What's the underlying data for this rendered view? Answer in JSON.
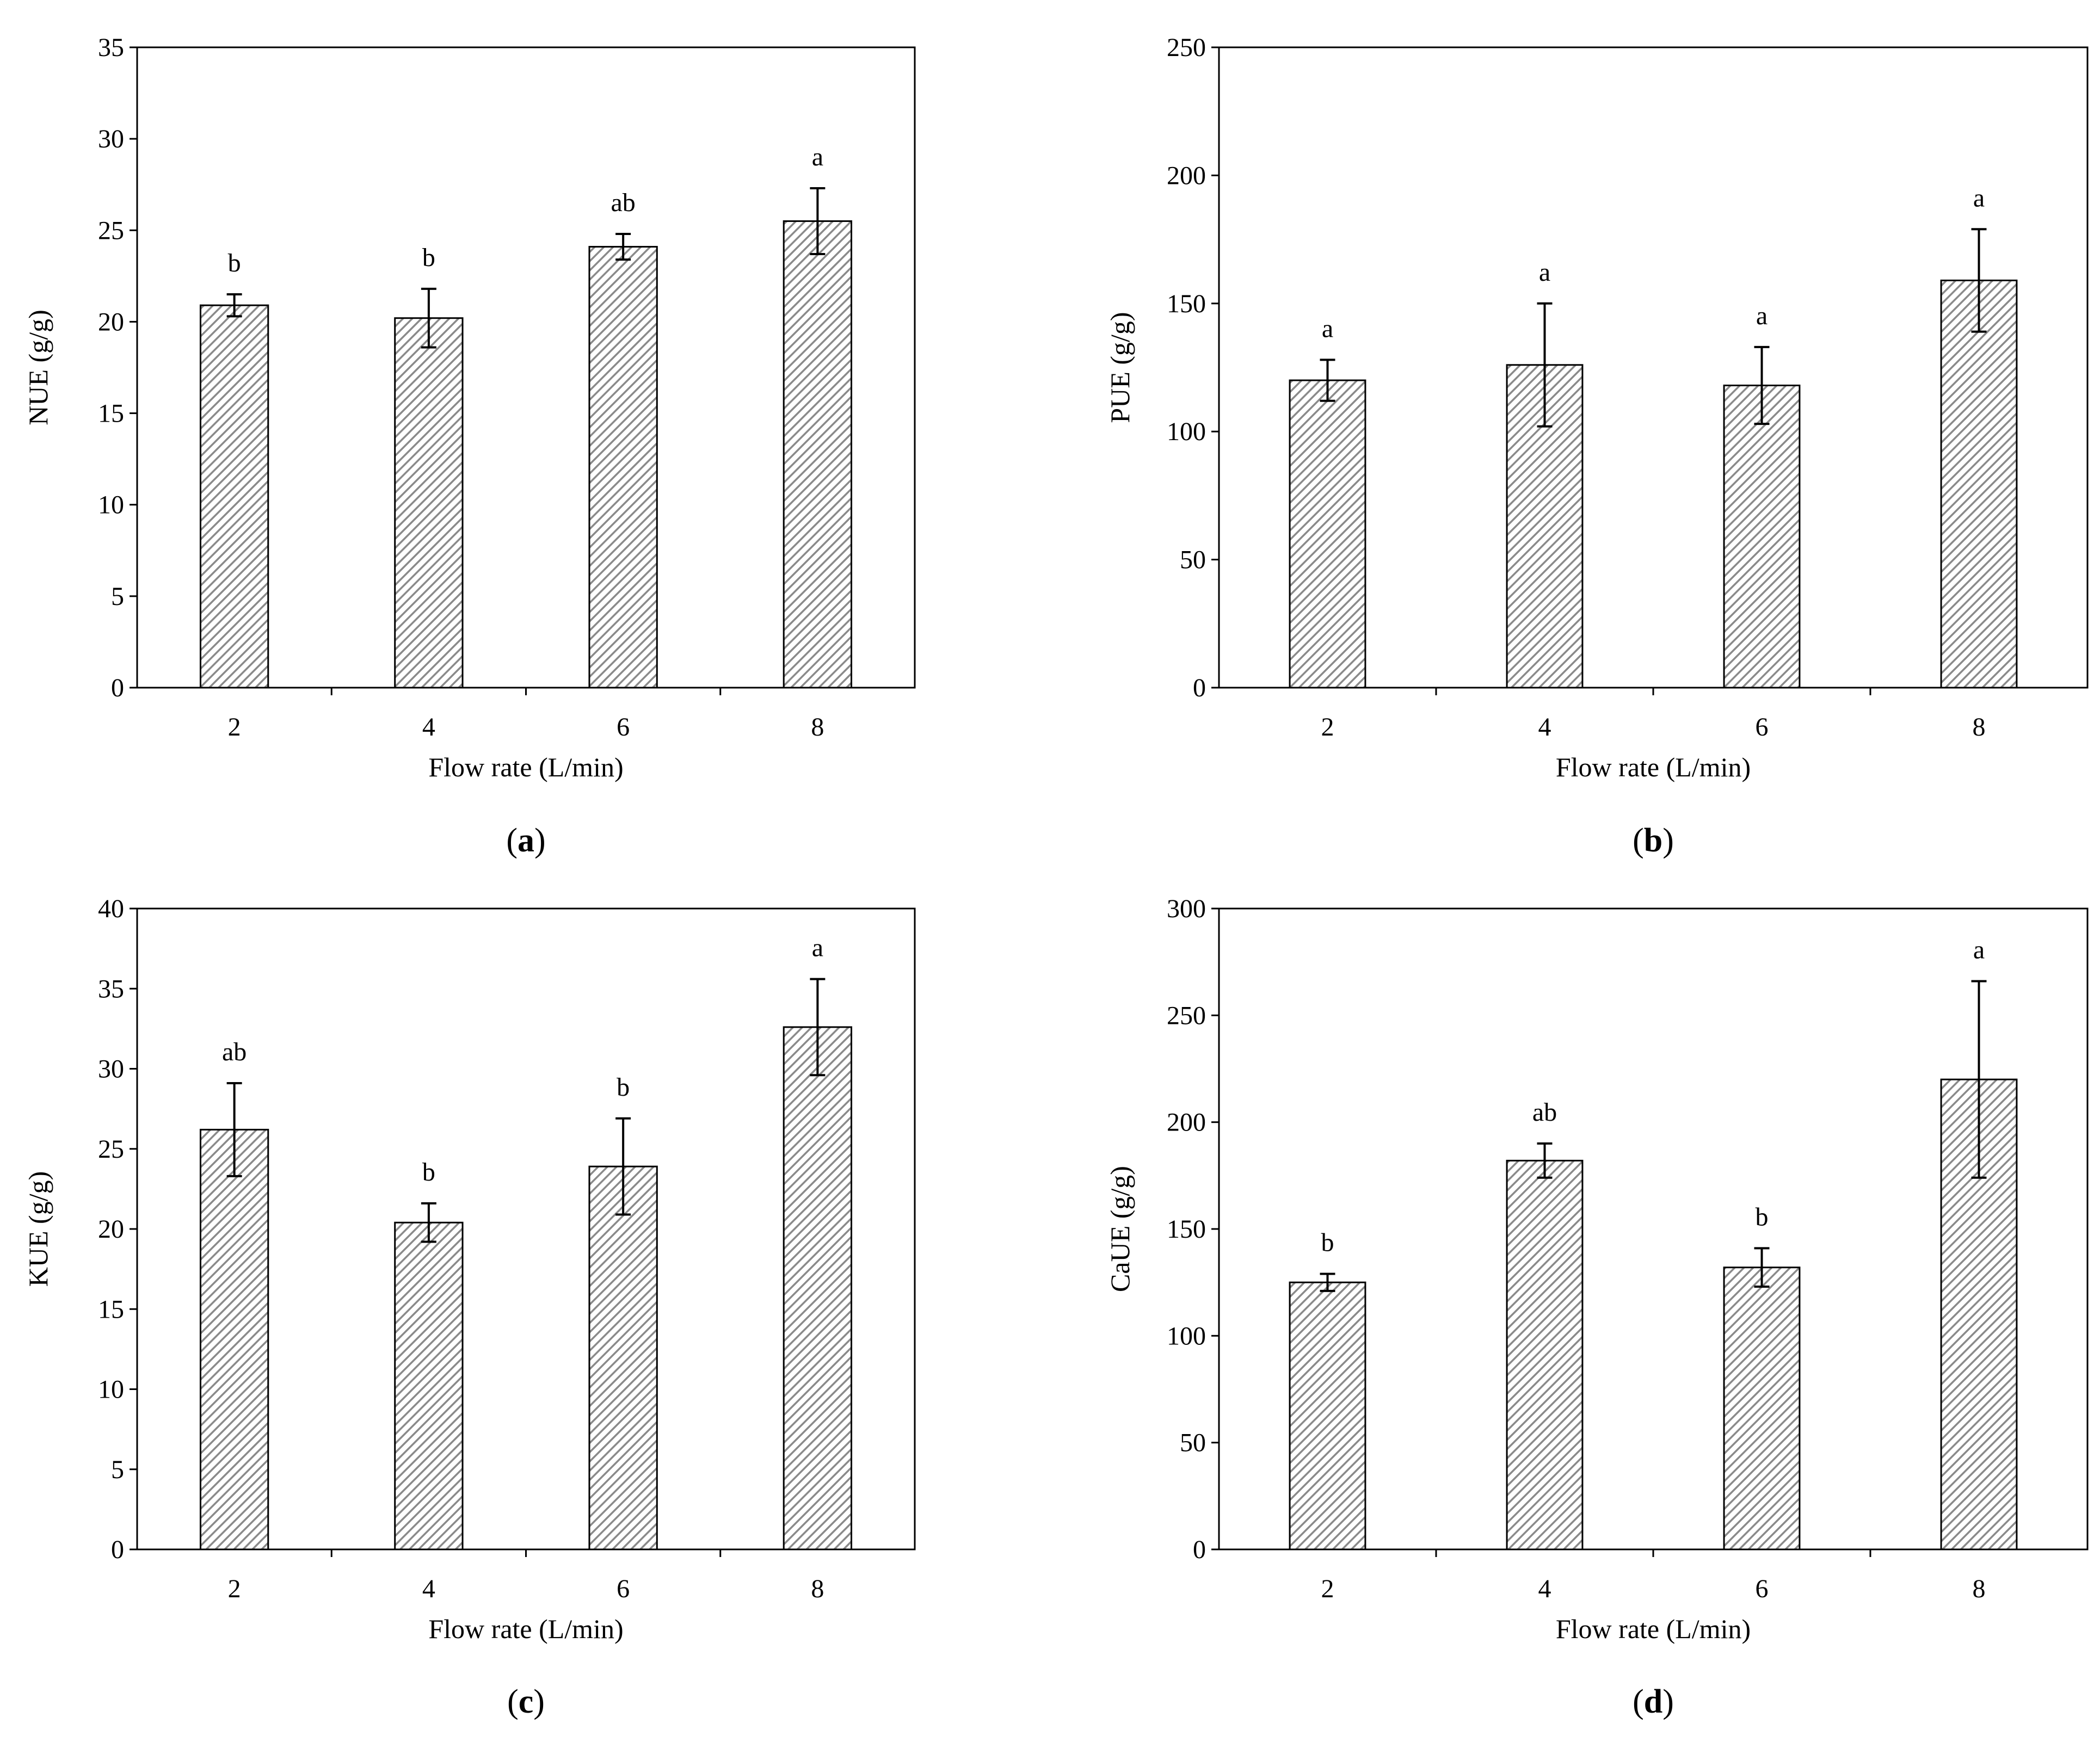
{
  "chart_data": [
    {
      "panel": "a",
      "type": "bar",
      "xlabel": "Flow rate (L/min)",
      "ylabel": "NUE (g/g)",
      "ylim": [
        0,
        35
      ],
      "yticks": [
        0,
        5,
        10,
        15,
        20,
        25,
        30,
        35
      ],
      "categories": [
        "2",
        "4",
        "6",
        "8"
      ],
      "values": [
        20.9,
        20.2,
        24.1,
        25.5
      ],
      "errors": [
        0.6,
        1.6,
        0.7,
        1.8
      ],
      "significance": [
        "b",
        "b",
        "ab",
        "a"
      ],
      "label_open": "(",
      "label_letter": "a",
      "label_close": ")"
    },
    {
      "panel": "b",
      "type": "bar",
      "xlabel": "Flow rate (L/min)",
      "ylabel": "PUE (g/g)",
      "ylim": [
        0,
        250
      ],
      "yticks": [
        0,
        50,
        100,
        150,
        200,
        250
      ],
      "categories": [
        "2",
        "4",
        "6",
        "8"
      ],
      "values": [
        120,
        126,
        118,
        159
      ],
      "errors": [
        8,
        24,
        15,
        20
      ],
      "significance": [
        "a",
        "a",
        "a",
        "a"
      ],
      "label_open": "(",
      "label_letter": "b",
      "label_close": ")"
    },
    {
      "panel": "c",
      "type": "bar",
      "xlabel": "Flow rate (L/min)",
      "ylabel": "KUE (g/g)",
      "ylim": [
        0,
        40
      ],
      "yticks": [
        0,
        5,
        10,
        15,
        20,
        25,
        30,
        35,
        40
      ],
      "categories": [
        "2",
        "4",
        "6",
        "8"
      ],
      "values": [
        26.2,
        20.4,
        23.9,
        32.6
      ],
      "errors": [
        2.9,
        1.2,
        3.0,
        3.0
      ],
      "significance": [
        "ab",
        "b",
        "b",
        "a"
      ],
      "label_open": "(",
      "label_letter": "c",
      "label_close": ")"
    },
    {
      "panel": "d",
      "type": "bar",
      "xlabel": "Flow rate (L/min)",
      "ylabel": "CaUE (g/g)",
      "ylim": [
        0,
        300
      ],
      "yticks": [
        0,
        50,
        100,
        150,
        200,
        250,
        300
      ],
      "categories": [
        "2",
        "4",
        "6",
        "8"
      ],
      "values": [
        125,
        182,
        132,
        220
      ],
      "errors": [
        4,
        8,
        9,
        46
      ],
      "significance": [
        "b",
        "ab",
        "b",
        "a"
      ],
      "label_open": "(",
      "label_letter": "d",
      "label_close": ")"
    }
  ]
}
